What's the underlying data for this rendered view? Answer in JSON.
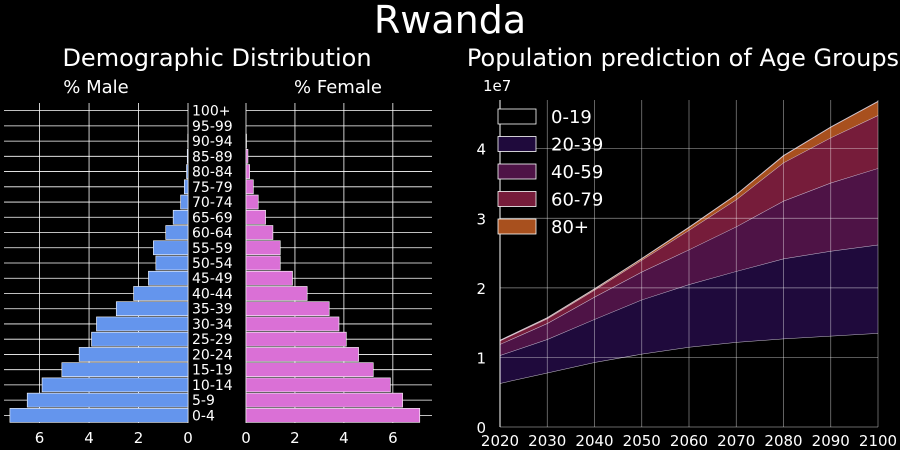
{
  "title": "Rwanda",
  "colors": {
    "background": "#000000",
    "male": "#6495ed",
    "female": "#da70d6",
    "grid": "#ffffff",
    "text": "#ffffff"
  },
  "chart_data": [
    {
      "type": "bar",
      "title": "Demographic Distribution",
      "orientation": "horizontal-pyramid",
      "categories": [
        "0-4",
        "5-9",
        "10-14",
        "15-19",
        "20-24",
        "25-29",
        "30-34",
        "35-39",
        "40-44",
        "45-49",
        "50-54",
        "55-59",
        "60-64",
        "65-69",
        "70-74",
        "75-79",
        "80-84",
        "85-89",
        "90-94",
        "95-99",
        "100+"
      ],
      "series": [
        {
          "name": "% Male",
          "color": "#6495ed",
          "values": [
            7.2,
            6.5,
            5.9,
            5.1,
            4.4,
            3.9,
            3.7,
            2.9,
            2.2,
            1.6,
            1.3,
            1.4,
            0.9,
            0.6,
            0.3,
            0.15,
            0.06,
            0.03,
            0.01,
            0.0,
            0.0
          ]
        },
        {
          "name": "% Female",
          "color": "#da70d6",
          "values": [
            7.1,
            6.4,
            5.9,
            5.2,
            4.6,
            4.1,
            3.8,
            3.4,
            2.5,
            1.9,
            1.4,
            1.4,
            1.1,
            0.8,
            0.5,
            0.3,
            0.15,
            0.08,
            0.02,
            0.0,
            0.0
          ]
        }
      ],
      "male_axis": {
        "ticks": [
          6,
          4,
          2,
          0
        ],
        "xlim": [
          7.6,
          0
        ]
      },
      "female_axis": {
        "ticks": [
          0,
          2,
          4,
          6
        ],
        "xlim": [
          0,
          7.6
        ]
      },
      "grid": true
    },
    {
      "type": "area",
      "stacked": true,
      "title": "Population prediction of Age Groups",
      "y_offset_label": "1e7",
      "x": [
        2020,
        2030,
        2040,
        2050,
        2060,
        2070,
        2080,
        2090,
        2100
      ],
      "series": [
        {
          "name": "0-19",
          "color": "#000000",
          "values": [
            6300000,
            7800000,
            9300000,
            10500000,
            11500000,
            12200000,
            12700000,
            13100000,
            13500000
          ]
        },
        {
          "name": "20-39",
          "color": "#1f0a3c",
          "values": [
            4000000,
            4800000,
            6200000,
            7800000,
            9000000,
            10200000,
            11500000,
            12200000,
            12700000
          ]
        },
        {
          "name": "40-59",
          "color": "#4e1346",
          "values": [
            1600000,
            2300000,
            3200000,
            4000000,
            5000000,
            6400000,
            8300000,
            9800000,
            11000000
          ]
        },
        {
          "name": "60-79",
          "color": "#761c3a",
          "values": [
            500000,
            700000,
            1000000,
            1700000,
            2800000,
            3900000,
            5500000,
            6500000,
            7600000
          ]
        },
        {
          "name": "80+",
          "color": "#a8501e",
          "values": [
            50000,
            100000,
            150000,
            200000,
            400000,
            700000,
            1000000,
            1500000,
            2000000
          ]
        }
      ],
      "xlim": [
        2020,
        2100
      ],
      "ylim": [
        0,
        47000000
      ],
      "y_ticks": [
        0,
        1,
        2,
        3,
        4
      ],
      "x_ticks": [
        2020,
        2030,
        2040,
        2050,
        2060,
        2070,
        2080,
        2090,
        2100
      ],
      "legend_position": "upper-left",
      "grid": true
    }
  ]
}
